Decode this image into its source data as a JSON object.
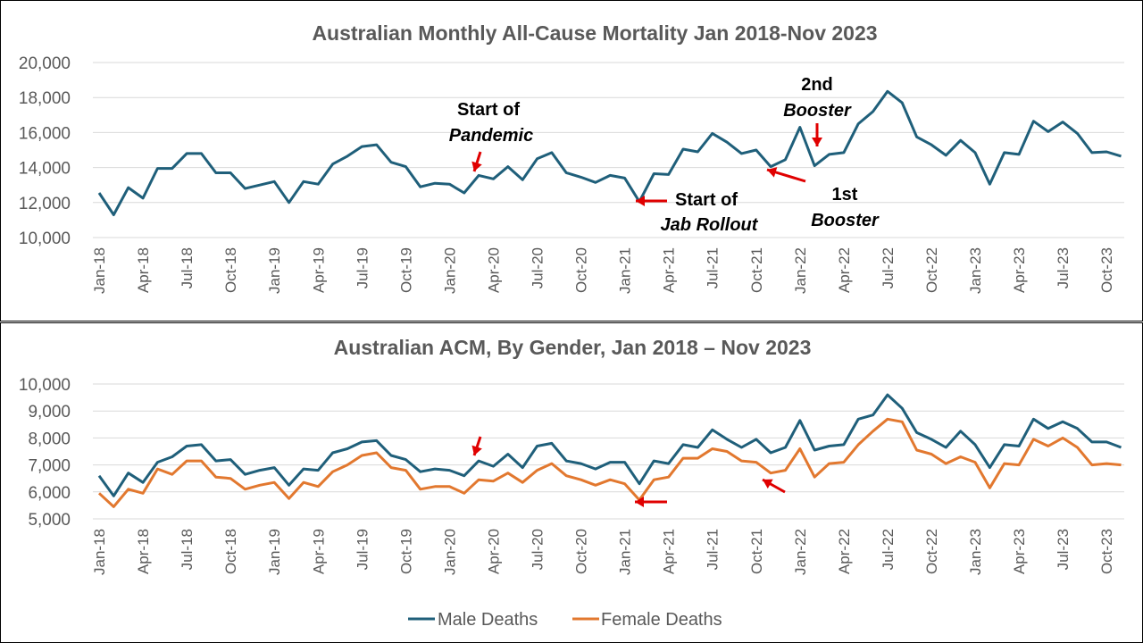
{
  "months": [
    "Jan-18",
    "Feb-18",
    "Mar-18",
    "Apr-18",
    "May-18",
    "Jun-18",
    "Jul-18",
    "Aug-18",
    "Sep-18",
    "Oct-18",
    "Nov-18",
    "Dec-18",
    "Jan-19",
    "Feb-19",
    "Mar-19",
    "Apr-19",
    "May-19",
    "Jun-19",
    "Jul-19",
    "Aug-19",
    "Sep-19",
    "Oct-19",
    "Nov-19",
    "Dec-19",
    "Jan-20",
    "Feb-20",
    "Mar-20",
    "Apr-20",
    "May-20",
    "Jun-20",
    "Jul-20",
    "Aug-20",
    "Sep-20",
    "Oct-20",
    "Nov-20",
    "Dec-20",
    "Jan-21",
    "Feb-21",
    "Mar-21",
    "Apr-21",
    "May-21",
    "Jun-21",
    "Jul-21",
    "Aug-21",
    "Sep-21",
    "Oct-21",
    "Nov-21",
    "Dec-21",
    "Jan-22",
    "Feb-22",
    "Mar-22",
    "Apr-22",
    "May-22",
    "Jun-22",
    "Jul-22",
    "Aug-22",
    "Sep-22",
    "Oct-22",
    "Nov-22",
    "Dec-22",
    "Jan-23",
    "Feb-23",
    "Mar-23",
    "Apr-23",
    "May-23",
    "Jun-23",
    "Jul-23",
    "Aug-23",
    "Sep-23",
    "Oct-23",
    "Nov-23"
  ],
  "colors": {
    "male": "#1F5F7A",
    "female": "#E2782F",
    "arrow": "#E00000",
    "grid": "#D9D9D9"
  },
  "chart_data": [
    {
      "type": "line",
      "title": "Australian Monthly All-Cause Mortality Jan 2018-Nov 2023",
      "ylim": [
        10000,
        20000
      ],
      "yticks": [
        "10,000",
        "12,000",
        "14,000",
        "16,000",
        "18,000",
        "20,000"
      ],
      "xtick_labels": [
        "Jan-18",
        "Apr-18",
        "Jul-18",
        "Oct-18",
        "Jan-19",
        "Apr-19",
        "Jul-19",
        "Oct-19",
        "Jan-20",
        "Apr-20",
        "Jul-20",
        "Oct-20",
        "Jan-21",
        "Apr-21",
        "Jul-21",
        "Oct-21",
        "Jan-22",
        "Apr-22",
        "Jul-22",
        "Oct-22",
        "Jan-23",
        "Apr-23",
        "Jul-23",
        "Oct-23"
      ],
      "grid": true,
      "series": [
        {
          "values": [
            12550,
            11300,
            12850,
            12250,
            13950,
            13950,
            14800,
            14800,
            13700,
            13700,
            12800,
            13000,
            13200,
            12000,
            13200,
            13050,
            14200,
            14650,
            15200,
            15300,
            14300,
            14050,
            12900,
            13100,
            13050,
            12550,
            13550,
            13350,
            14050,
            13300,
            14500,
            14850,
            13700,
            13450,
            13150,
            13550,
            13400,
            12050,
            13650,
            13600,
            15050,
            14900,
            15950,
            15450,
            14800,
            15000,
            14050,
            14450,
            16300,
            14100,
            14750,
            14850,
            16500,
            17200,
            18350,
            17700,
            15750,
            15300,
            14700,
            15550,
            14850,
            13050,
            14850,
            14750,
            16650,
            16050,
            16600,
            15950,
            14850,
            14900,
            14650
          ]
        }
      ],
      "annotations": [
        {
          "line1": "Start of",
          "line2": "Pandemic"
        },
        {
          "line1": "Start of",
          "line2": "Jab Rollout"
        },
        {
          "line1": "2nd",
          "line2": "Booster"
        },
        {
          "line1": "1st",
          "line2": "Booster"
        }
      ]
    },
    {
      "type": "line",
      "title": "Australian ACM, By Gender, Jan 2018 – Nov 2023",
      "ylim": [
        5000,
        10000
      ],
      "yticks": [
        "5,000",
        "6,000",
        "7,000",
        "8,000",
        "9,000",
        "10,000"
      ],
      "xtick_labels": [
        "Jan-18",
        "Apr-18",
        "Jul-18",
        "Oct-18",
        "Jan-19",
        "Apr-19",
        "Jul-19",
        "Oct-19",
        "Jan-20",
        "Apr-20",
        "Jul-20",
        "Oct-20",
        "Jan-21",
        "Apr-21",
        "Jul-21",
        "Oct-21",
        "Jan-22",
        "Apr-22",
        "Jul-22",
        "Oct-22",
        "Jan-23",
        "Apr-23",
        "Jul-23",
        "Oct-23"
      ],
      "grid": true,
      "legend": "bottom",
      "series": [
        {
          "name": "Male Deaths",
          "values": [
            6600,
            5850,
            6700,
            6350,
            7100,
            7300,
            7700,
            7750,
            7150,
            7200,
            6650,
            6800,
            6900,
            6250,
            6850,
            6800,
            7450,
            7600,
            7850,
            7900,
            7350,
            7200,
            6750,
            6850,
            6800,
            6600,
            7150,
            6950,
            7400,
            6900,
            7700,
            7800,
            7150,
            7050,
            6850,
            7100,
            7100,
            6300,
            7150,
            7050,
            7750,
            7650,
            8300,
            7950,
            7650,
            7950,
            7450,
            7650,
            8650,
            7550,
            7700,
            7750,
            8700,
            8850,
            9600,
            9100,
            8200,
            7950,
            7650,
            8250,
            7750,
            6900,
            7750,
            7700,
            8700,
            8350,
            8600,
            8350,
            7850,
            7850,
            7650
          ]
        },
        {
          "name": "Female Deaths",
          "values": [
            5950,
            5450,
            6100,
            5950,
            6850,
            6650,
            7150,
            7150,
            6550,
            6500,
            6100,
            6250,
            6350,
            5750,
            6350,
            6200,
            6750,
            7000,
            7350,
            7450,
            6900,
            6800,
            6100,
            6200,
            6200,
            5950,
            6450,
            6400,
            6700,
            6350,
            6800,
            7050,
            6600,
            6450,
            6250,
            6450,
            6300,
            5700,
            6450,
            6550,
            7250,
            7250,
            7600,
            7500,
            7150,
            7100,
            6700,
            6800,
            7600,
            6550,
            7050,
            7100,
            7750,
            8250,
            8700,
            8600,
            7550,
            7400,
            7050,
            7300,
            7100,
            6150,
            7050,
            7000,
            7950,
            7700,
            8000,
            7650,
            7000,
            7050,
            7000
          ]
        }
      ]
    }
  ]
}
